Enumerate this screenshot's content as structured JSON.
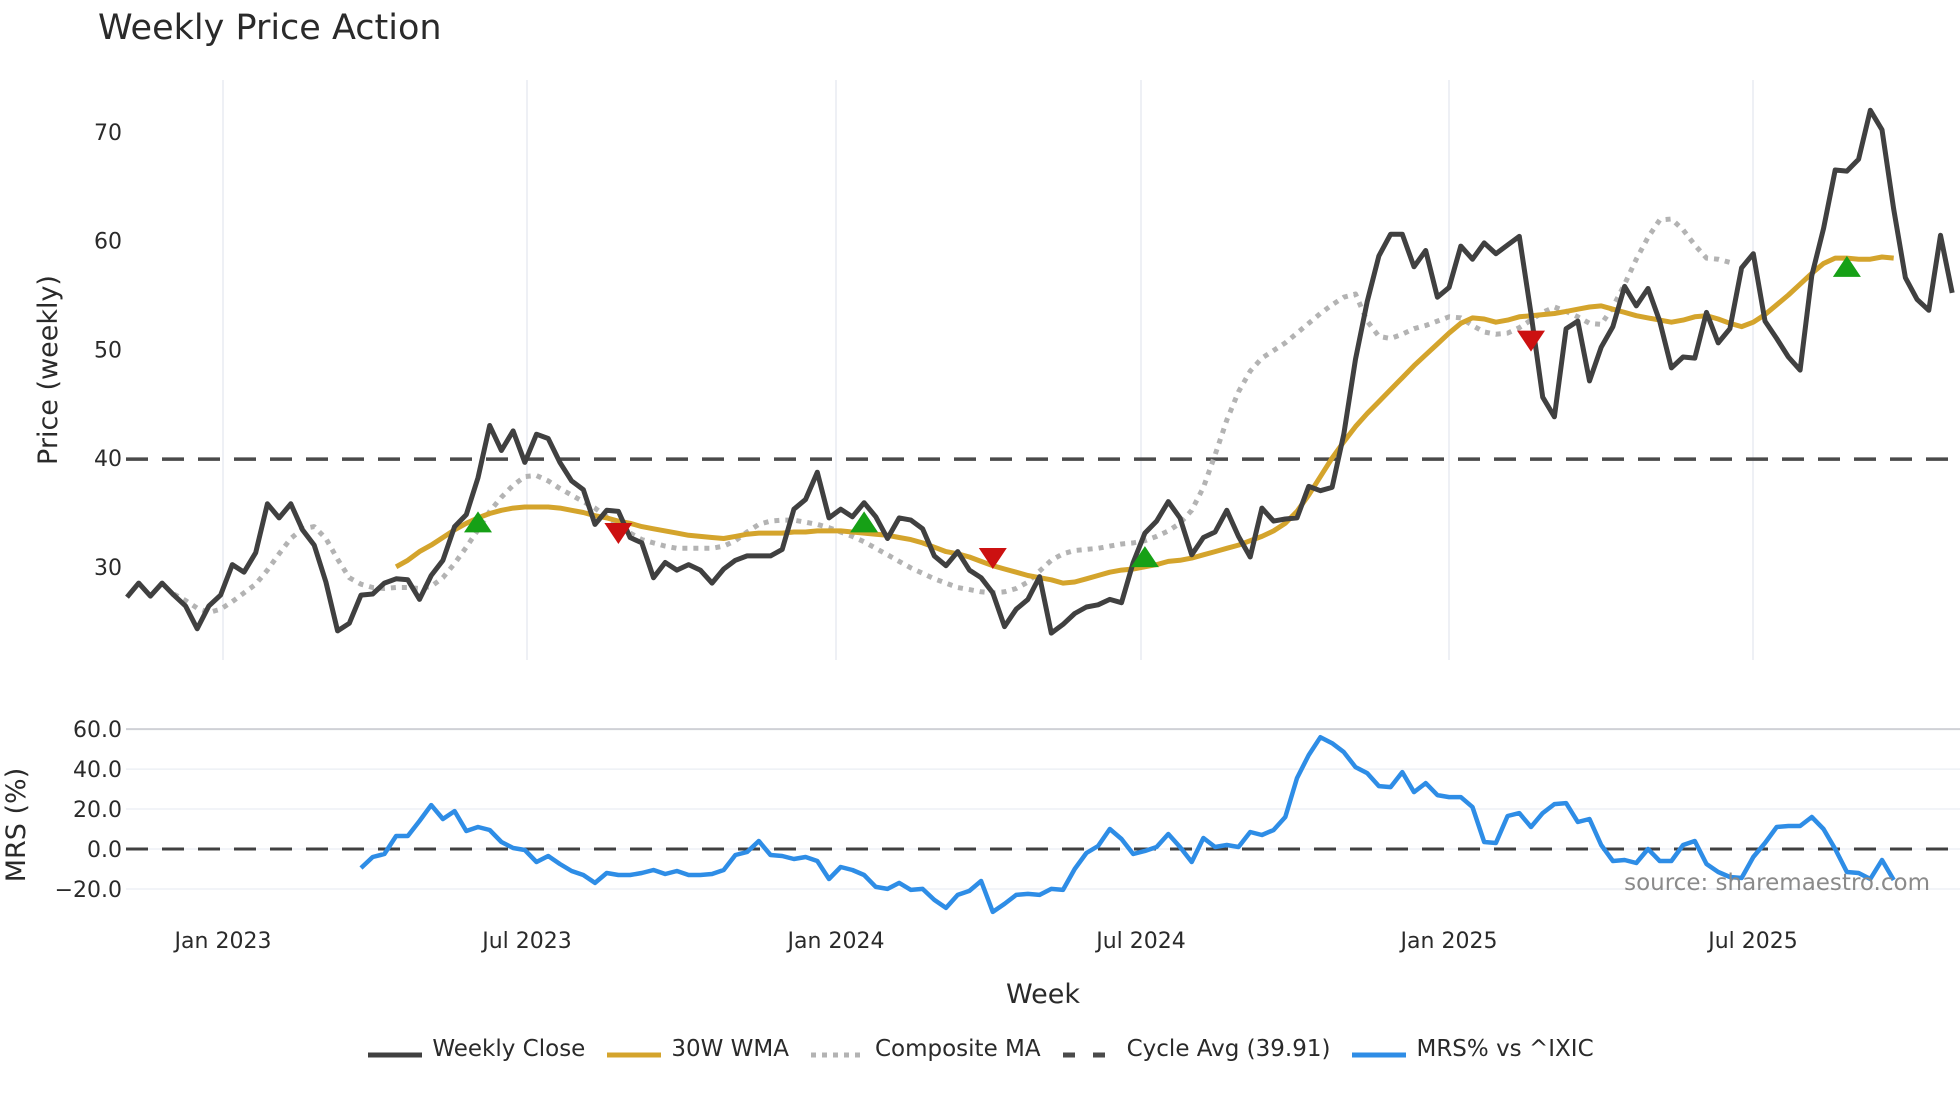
{
  "title": "Weekly Price Action",
  "source": "source: sharemaestro.com",
  "chart_data": [
    {
      "type": "line",
      "title": "Weekly Price Action",
      "xlabel": "Week",
      "ylabel": "Price (weekly)",
      "ylim": [
        21,
        75
      ],
      "yticks": [
        30,
        40,
        50,
        60,
        70
      ],
      "xticks": [
        "Jan 2023",
        "Jul 2023",
        "Jan 2024",
        "Jul 2024",
        "Jan 2025",
        "Jul 2025"
      ],
      "grid": true,
      "x_start_week_index_note": "index 0 = first plotted week (approx. early Nov 2022); Jan 2023 at index 8.2",
      "series": [
        {
          "name": "Weekly Close",
          "color": "#404040",
          "style": "solid",
          "values": [
            27.2,
            28.5,
            27.3,
            28.5,
            27.4,
            26.4,
            24.3,
            26.4,
            27.4,
            30.2,
            29.5,
            31.3,
            35.8,
            34.5,
            35.8,
            33.4,
            32.0,
            28.6,
            24.1,
            24.8,
            27.4,
            27.5,
            28.5,
            28.9,
            28.8,
            27.0,
            29.2,
            30.6,
            33.7,
            34.8,
            38.2,
            43.0,
            40.7,
            42.5,
            39.6,
            42.2,
            41.8,
            39.6,
            37.9,
            37.1,
            33.9,
            35.2,
            35.1,
            32.7,
            32.2,
            29.0,
            30.4,
            29.7,
            30.2,
            29.7,
            28.5,
            29.8,
            30.6,
            31.0,
            31.0,
            31.0,
            31.6,
            35.3,
            36.2,
            38.7,
            34.5,
            35.3,
            34.6,
            35.9,
            34.6,
            32.6,
            34.5,
            34.3,
            33.5,
            31.0,
            30.1,
            31.4,
            29.7,
            29.0,
            27.6,
            24.5,
            26.1,
            27.0,
            29.1,
            23.9,
            24.7,
            25.7,
            26.3,
            26.5,
            27.0,
            26.7,
            30.4,
            33.1,
            34.2,
            36.0,
            34.5,
            31.1,
            32.7,
            33.2,
            35.2,
            32.8,
            30.9,
            35.4,
            34.2,
            34.4,
            34.5,
            37.4,
            37.0,
            37.3,
            42.2,
            49.1,
            54.4,
            58.6,
            60.6,
            60.6,
            57.6,
            59.1,
            54.8,
            55.7,
            59.5,
            58.3,
            59.8,
            58.8,
            59.6,
            60.4,
            53.3,
            45.6,
            43.8,
            51.9,
            52.6,
            47.1,
            50.2,
            52.1,
            55.8,
            54.0,
            55.6,
            52.6,
            48.3,
            49.3,
            49.2,
            53.4,
            50.6,
            51.9,
            57.5,
            58.8,
            52.6,
            51.0,
            49.3,
            48.1,
            56.8,
            61.1,
            66.5,
            66.4,
            67.5,
            72.0,
            70.2,
            62.9,
            56.6,
            54.6,
            53.6,
            60.5,
            55.2
          ]
        },
        {
          "name": "30W WMA",
          "color": "#d4a42c",
          "style": "solid",
          "start_index": 23,
          "values": [
            30.0,
            30.6,
            31.4,
            32.0,
            32.7,
            33.4,
            34.0,
            34.5,
            34.9,
            35.2,
            35.4,
            35.5,
            35.5,
            35.5,
            35.4,
            35.2,
            35.0,
            34.7,
            34.5,
            34.2,
            34.0,
            33.7,
            33.5,
            33.3,
            33.1,
            32.9,
            32.8,
            32.7,
            32.6,
            32.8,
            33.0,
            33.1,
            33.1,
            33.1,
            33.2,
            33.2,
            33.3,
            33.3,
            33.3,
            33.2,
            33.1,
            33.0,
            32.9,
            32.7,
            32.5,
            32.2,
            31.8,
            31.4,
            31.2,
            30.9,
            30.5,
            30.1,
            29.8,
            29.5,
            29.2,
            29.0,
            28.8,
            28.5,
            28.6,
            28.9,
            29.2,
            29.5,
            29.7,
            29.8,
            30.0,
            30.2,
            30.5,
            30.6,
            30.8,
            31.1,
            31.4,
            31.7,
            32.0,
            32.4,
            32.8,
            33.3,
            34.0,
            35.1,
            36.6,
            38.3,
            40.0,
            41.5,
            42.9,
            44.1,
            45.2,
            46.3,
            47.4,
            48.5,
            49.5,
            50.5,
            51.5,
            52.4,
            52.9,
            52.8,
            52.5,
            52.7,
            53.0,
            53.1,
            53.2,
            53.3,
            53.5,
            53.7,
            53.9,
            54.0,
            53.7,
            53.4,
            53.1,
            52.9,
            52.7,
            52.5,
            52.7,
            53.0,
            53.1,
            52.8,
            52.4,
            52.1,
            52.5,
            53.2,
            54.1,
            55.0,
            56.0,
            57.0,
            57.9,
            58.4,
            58.4,
            58.3,
            58.3,
            58.5,
            58.4
          ]
        },
        {
          "name": "Composite MA",
          "color": "#b3b3b3",
          "style": "dotted",
          "start_index": 4,
          "values": [
            27.5,
            26.9,
            26.2,
            25.8,
            26.1,
            26.8,
            27.6,
            28.4,
            29.7,
            31.2,
            32.6,
            33.5,
            33.7,
            32.6,
            30.7,
            29.0,
            28.4,
            28.1,
            28.0,
            28.1,
            28.1,
            28.0,
            28.2,
            29.0,
            30.3,
            31.8,
            33.4,
            35.1,
            36.4,
            37.5,
            38.3,
            38.4,
            37.9,
            37.2,
            36.6,
            36.0,
            35.4,
            34.6,
            33.8,
            33.1,
            32.5,
            32.2,
            31.9,
            31.7,
            31.7,
            31.7,
            31.7,
            31.9,
            32.4,
            33.2,
            33.9,
            34.2,
            34.3,
            34.3,
            34.1,
            33.9,
            33.6,
            33.2,
            32.8,
            32.3,
            31.7,
            31.1,
            30.5,
            29.9,
            29.4,
            28.9,
            28.5,
            28.1,
            27.9,
            27.7,
            27.6,
            27.7,
            28.0,
            28.6,
            29.6,
            30.6,
            31.2,
            31.5,
            31.6,
            31.7,
            31.9,
            32.1,
            32.2,
            32.4,
            32.8,
            33.3,
            34.0,
            35.2,
            37.3,
            40.3,
            43.5,
            46.1,
            48.0,
            49.2,
            49.9,
            50.6,
            51.5,
            52.4,
            53.3,
            54.1,
            54.8,
            55.1,
            52.6,
            51.2,
            51.0,
            51.4,
            51.9,
            52.2,
            52.6,
            53.0,
            52.9,
            52.2,
            51.6,
            51.4,
            51.5,
            52.0,
            52.7,
            53.4,
            53.9,
            53.5,
            53.0,
            52.4,
            52.3,
            53.9,
            56.0,
            58.3,
            60.3,
            61.9,
            62.0,
            61.0,
            59.6,
            58.4,
            58.3,
            58.0
          ]
        },
        {
          "name": "Cycle Avg (39.91)",
          "color": "#4a4a4a",
          "style": "dashed",
          "value": 39.91
        }
      ],
      "markers": [
        {
          "type": "buy",
          "shape": "triangle-up",
          "color": "#16a016",
          "index": 30,
          "value": 34.0
        },
        {
          "type": "sell",
          "shape": "triangle-down",
          "color": "#cc1111",
          "index": 42,
          "value": 33.2
        },
        {
          "type": "buy",
          "shape": "triangle-up",
          "color": "#16a016",
          "index": 63,
          "value": 34.0
        },
        {
          "type": "sell",
          "shape": "triangle-down",
          "color": "#cc1111",
          "index": 74,
          "value": 30.9
        },
        {
          "type": "buy",
          "shape": "triangle-up",
          "color": "#16a016",
          "index": 87,
          "value": 30.8
        },
        {
          "type": "sell",
          "shape": "triangle-down",
          "color": "#cc1111",
          "index": 120,
          "value": 50.9
        },
        {
          "type": "buy",
          "shape": "triangle-up",
          "color": "#16a016",
          "index": 147,
          "value": 57.5
        }
      ]
    },
    {
      "type": "line",
      "ylabel": "MRS (%)",
      "ylim": [
        -32,
        66
      ],
      "yticks": [
        "60.0",
        "40.0",
        "20.0",
        "0.0",
        "−20.0"
      ],
      "grid": true,
      "series": [
        {
          "name": "MRS% vs ^IXIC",
          "color": "#2e8de6",
          "style": "solid",
          "start_index": 20,
          "values": [
            -9.5,
            -4.0,
            -2.5,
            6.5,
            6.5,
            14.0,
            22.0,
            15.0,
            19.0,
            9.0,
            11.0,
            9.5,
            3.5,
            0.5,
            -0.5,
            -6.5,
            -3.5,
            -7.5,
            -11.0,
            -13.0,
            -17.0,
            -12.0,
            -13.0,
            -13.0,
            -12.0,
            -10.5,
            -12.5,
            -11.0,
            -13.0,
            -13.0,
            -12.5,
            -10.5,
            -3.0,
            -1.5,
            4.0,
            -3.0,
            -3.5,
            -5.0,
            -4.0,
            -6.0,
            -15.0,
            -9.0,
            -10.5,
            -13.0,
            -19.0,
            -20.0,
            -17.0,
            -20.5,
            -20.0,
            -25.5,
            -29.5,
            -23.0,
            -21.0,
            -16.0,
            -31.5,
            -27.5,
            -23.0,
            -22.5,
            -23.0,
            -20.0,
            -20.5,
            -10.0,
            -2.0,
            1.5,
            10.0,
            5.0,
            -2.5,
            -1.0,
            1.0,
            7.5,
            1.0,
            -6.5,
            5.5,
            1.0,
            2.0,
            1.0,
            8.5,
            7.0,
            9.5,
            16.0,
            35.5,
            47.0,
            56.0,
            53.0,
            48.5,
            41.0,
            38.0,
            31.5,
            31.0,
            38.5,
            28.5,
            33.0,
            27.0,
            26.0,
            26.0,
            21.0,
            3.5,
            3.0,
            16.5,
            18.0,
            11.0,
            18.0,
            22.5,
            23.0,
            13.5,
            15.0,
            2.0,
            -6.0,
            -5.5,
            -7.0,
            0.0,
            -6.0,
            -6.0,
            2.0,
            4.0,
            -7.5,
            -11.5,
            -14.0,
            -14.5,
            -4.0,
            3.0,
            11.0,
            11.5,
            11.5,
            16.0,
            10.0,
            0.0,
            -11.5,
            -12.0,
            -15.0,
            -5.5,
            -15.5
          ]
        },
        {
          "name": "Zero line",
          "color": "#404040",
          "style": "dashed",
          "value": 0
        }
      ]
    }
  ],
  "axes": {
    "price": {
      "label": "Price (weekly)",
      "ticks": [
        "70",
        "60",
        "50",
        "40",
        "30"
      ]
    },
    "mrs": {
      "label": "MRS (%)",
      "ticks": [
        "60.0",
        "40.0",
        "20.0",
        "0.0",
        "−20.0"
      ]
    },
    "x": {
      "label": "Week",
      "ticks": [
        "Jan 2023",
        "Jul 2023",
        "Jan 2024",
        "Jul 2024",
        "Jan 2025",
        "Jul 2025"
      ]
    }
  },
  "legend": [
    {
      "label": "Weekly Close",
      "color": "#404040",
      "style": "solid"
    },
    {
      "label": "30W WMA",
      "color": "#d4a42c",
      "style": "solid"
    },
    {
      "label": "Composite MA",
      "color": "#b3b3b3",
      "style": "dotted"
    },
    {
      "label": "Cycle Avg (39.91)",
      "color": "#4a4a4a",
      "style": "dashed"
    },
    {
      "label": "MRS% vs ^IXIC",
      "color": "#2e8de6",
      "style": "solid"
    }
  ]
}
